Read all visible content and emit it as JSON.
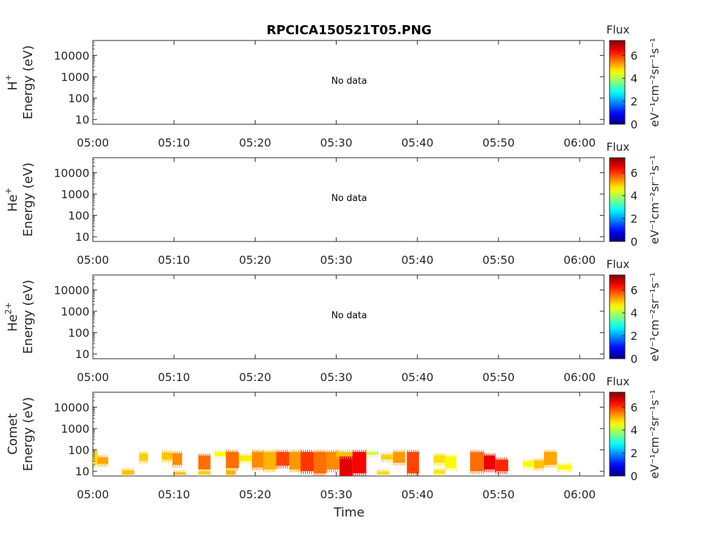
{
  "title": "RPCICA150521T05.PNG",
  "xlabel": "Time",
  "no_data_text": "No data",
  "colorbar": {
    "label": "Flux",
    "unit_text": "eV⁻¹cm⁻²sr⁻¹s⁻¹",
    "ticks": [
      "0",
      "2",
      "4",
      "6"
    ],
    "range": [
      0,
      7.3
    ],
    "colormap": "jet"
  },
  "time_axis": {
    "range_minutes": [
      0,
      63
    ],
    "tick_labels": [
      "05:00",
      "05:10",
      "05:20",
      "05:30",
      "05:40",
      "05:50",
      "06:00"
    ]
  },
  "energy_axis": {
    "scale": "log",
    "range_eV": [
      6,
      50000
    ],
    "tick_labels": [
      "10",
      "100",
      "1000",
      "10000"
    ]
  },
  "panels": [
    {
      "ylabel_species": "H",
      "ylabel_sup": "+",
      "ylabel_units": "Energy (eV)",
      "has_data": false
    },
    {
      "ylabel_species": "He",
      "ylabel_sup": "+",
      "ylabel_units": "Energy (eV)",
      "has_data": false
    },
    {
      "ylabel_species": "He",
      "ylabel_sup": "2+",
      "ylabel_units": "Energy (eV)",
      "has_data": false
    },
    {
      "ylabel_species": "Comet",
      "ylabel_sup": "",
      "ylabel_units": "Energy (eV)",
      "has_data": true
    }
  ],
  "chart_data": {
    "type": "heatmap",
    "title": "RPCICA150521T05.PNG",
    "xlabel": "Time",
    "x_units": "minutes after 05:00",
    "y_units": "eV",
    "y_scale": "log",
    "panel": "Comet",
    "blocks": [
      {
        "t0": 0.0,
        "t1": 0.6,
        "e0": 20,
        "e1": 90,
        "flux": 4.8
      },
      {
        "t0": 0.6,
        "t1": 1.9,
        "e0": 22,
        "e1": 45,
        "flux": 5.2
      },
      {
        "t0": 3.6,
        "t1": 5.1,
        "e0": 7,
        "e1": 11,
        "flux": 5.0
      },
      {
        "t0": 5.7,
        "t1": 6.8,
        "e0": 30,
        "e1": 70,
        "flux": 4.9
      },
      {
        "t0": 8.5,
        "t1": 9.8,
        "e0": 35,
        "e1": 75,
        "flux": 5.0
      },
      {
        "t0": 9.8,
        "t1": 11.0,
        "e0": 20,
        "e1": 70,
        "flux": 5.4
      },
      {
        "t0": 10.0,
        "t1": 11.5,
        "e0": 7,
        "e1": 9,
        "flux": 5.0
      },
      {
        "t0": 13.0,
        "t1": 14.5,
        "e0": 12,
        "e1": 55,
        "flux": 5.6
      },
      {
        "t0": 13.0,
        "t1": 14.5,
        "e0": 7,
        "e1": 10,
        "flux": 4.9
      },
      {
        "t0": 15.0,
        "t1": 16.4,
        "e0": 50,
        "e1": 80,
        "flux": 4.6
      },
      {
        "t0": 16.4,
        "t1": 18.0,
        "e0": 14,
        "e1": 80,
        "flux": 5.6
      },
      {
        "t0": 16.4,
        "t1": 17.6,
        "e0": 7,
        "e1": 11,
        "flux": 5.1
      },
      {
        "t0": 18.0,
        "t1": 19.6,
        "e0": 30,
        "e1": 55,
        "flux": 4.7
      },
      {
        "t0": 19.6,
        "t1": 21.0,
        "e0": 15,
        "e1": 80,
        "flux": 5.4
      },
      {
        "t0": 21.0,
        "t1": 22.6,
        "e0": 12,
        "e1": 80,
        "flux": 5.1
      },
      {
        "t0": 22.6,
        "t1": 24.2,
        "e0": 18,
        "e1": 80,
        "flux": 5.9
      },
      {
        "t0": 24.2,
        "t1": 25.6,
        "e0": 12,
        "e1": 80,
        "flux": 5.3
      },
      {
        "t0": 25.6,
        "t1": 27.2,
        "e0": 10,
        "e1": 80,
        "flux": 6.0
      },
      {
        "t0": 27.2,
        "t1": 28.8,
        "e0": 8,
        "e1": 80,
        "flux": 5.6
      },
      {
        "t0": 28.8,
        "t1": 30.4,
        "e0": 12,
        "e1": 80,
        "flux": 5.4
      },
      {
        "t0": 30.4,
        "t1": 32.0,
        "e0": 6,
        "e1": 50,
        "flux": 6.6
      },
      {
        "t0": 30.0,
        "t1": 32.0,
        "e0": 50,
        "e1": 80,
        "flux": 5.0
      },
      {
        "t0": 32.0,
        "t1": 33.7,
        "e0": 8,
        "e1": 80,
        "flux": 6.4
      },
      {
        "t0": 33.7,
        "t1": 35.2,
        "e0": 60,
        "e1": 80,
        "flux": 4.2
      },
      {
        "t0": 35.0,
        "t1": 36.5,
        "e0": 7,
        "e1": 10,
        "flux": 4.8
      },
      {
        "t0": 35.5,
        "t1": 37.0,
        "e0": 35,
        "e1": 60,
        "flux": 4.9
      },
      {
        "t0": 37.0,
        "t1": 38.5,
        "e0": 25,
        "e1": 80,
        "flux": 5.3
      },
      {
        "t0": 38.7,
        "t1": 40.2,
        "e0": 8,
        "e1": 80,
        "flux": 5.9
      },
      {
        "t0": 42.0,
        "t1": 43.4,
        "e0": 25,
        "e1": 55,
        "flux": 4.8
      },
      {
        "t0": 42.0,
        "t1": 43.4,
        "e0": 8,
        "e1": 11,
        "flux": 4.8
      },
      {
        "t0": 43.4,
        "t1": 44.8,
        "e0": 14,
        "e1": 50,
        "flux": 4.6
      },
      {
        "t0": 46.5,
        "t1": 48.2,
        "e0": 10,
        "e1": 80,
        "flux": 5.6
      },
      {
        "t0": 48.2,
        "t1": 49.6,
        "e0": 12,
        "e1": 55,
        "flux": 6.5
      },
      {
        "t0": 49.6,
        "t1": 51.2,
        "e0": 10,
        "e1": 35,
        "flux": 6.1
      },
      {
        "t0": 53.0,
        "t1": 54.4,
        "e0": 16,
        "e1": 30,
        "flux": 4.6
      },
      {
        "t0": 54.4,
        "t1": 55.6,
        "e0": 14,
        "e1": 32,
        "flux": 5.0
      },
      {
        "t0": 55.6,
        "t1": 57.2,
        "e0": 20,
        "e1": 80,
        "flux": 5.2
      },
      {
        "t0": 57.2,
        "t1": 59.0,
        "e0": 12,
        "e1": 20,
        "flux": 4.6
      }
    ]
  }
}
